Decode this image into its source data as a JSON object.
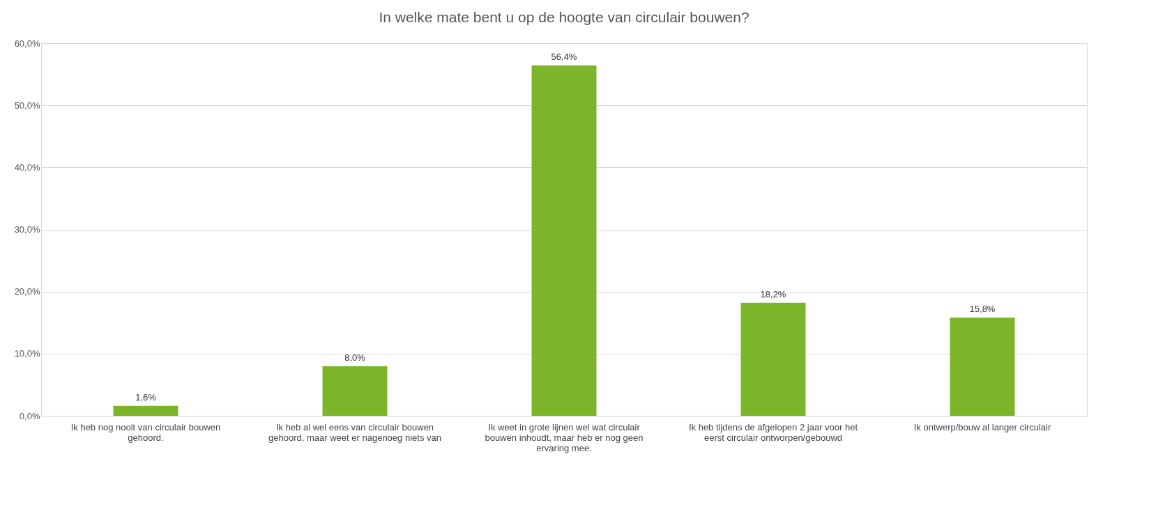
{
  "chart_data": {
    "type": "bar",
    "title": "In welke mate bent u op de hoogte van circulair bouwen?",
    "categories": [
      "Ik heb nog nooit van circulair bouwen gehoord.",
      "Ik heb al wel eens van circulair bouwen gehoord, maar weet er nagenoeg niets van",
      "Ik weet in grote lijnen wel wat circulair bouwen inhoudt, maar heb er nog geen ervaring mee.",
      "Ik heb tijdens de afgelopen 2 jaar voor het eerst circulair ontworpen/gebouwd",
      "Ik ontwerp/bouw al langer circulair"
    ],
    "values": [
      1.6,
      8.0,
      56.4,
      18.2,
      15.8
    ],
    "value_labels": [
      "1,6%",
      "8,0%",
      "56,4%",
      "18,2%",
      "15,8%"
    ],
    "color": "#7cb52a",
    "ylim": [
      0,
      60
    ],
    "yticks": [
      {
        "value": 0,
        "label": "0,0%"
      },
      {
        "value": 10,
        "label": "10,0%"
      },
      {
        "value": 20,
        "label": "20,0%"
      },
      {
        "value": 30,
        "label": "30,0%"
      },
      {
        "value": 40,
        "label": "40,0%"
      },
      {
        "value": 50,
        "label": "50,0%"
      },
      {
        "value": 60,
        "label": "60,0%"
      }
    ],
    "grid": "y"
  }
}
